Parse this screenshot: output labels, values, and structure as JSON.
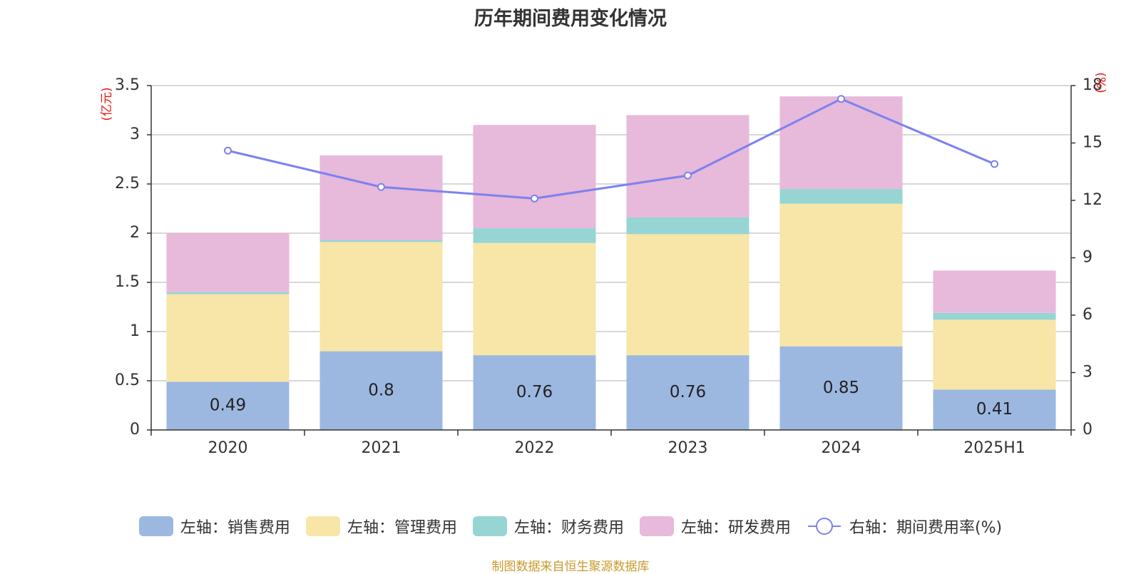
{
  "chart_data": {
    "type": "bar",
    "stacked": true,
    "title": "历年期间费用变化情况",
    "categories": [
      "2020",
      "2021",
      "2022",
      "2023",
      "2024",
      "2025H1"
    ],
    "y_left": {
      "unit": "(亿元)",
      "ylim": [
        0,
        3.5
      ],
      "ticks": [
        "0",
        "0.5",
        "1",
        "1.5",
        "2",
        "2.5",
        "3",
        "3.5"
      ]
    },
    "y_right": {
      "unit": "(%)",
      "ylim": [
        0,
        18
      ],
      "ticks": [
        "0",
        "3",
        "6",
        "9",
        "12",
        "15",
        "18"
      ]
    },
    "grid": true,
    "legend_position": "bottom",
    "series": [
      {
        "name": "左轴：销售费用",
        "type": "bar",
        "color": "#9db8e0",
        "values": [
          0.49,
          0.8,
          0.76,
          0.76,
          0.85,
          0.41
        ],
        "labels": [
          "0.49",
          "0.8",
          "0.76",
          "0.76",
          "0.85",
          "0.41"
        ]
      },
      {
        "name": "左轴：管理费用",
        "type": "bar",
        "color": "#f7e6a7",
        "values": [
          0.89,
          1.11,
          1.14,
          1.23,
          1.45,
          0.71
        ]
      },
      {
        "name": "左轴：财务费用",
        "type": "bar",
        "color": "#96d5d3",
        "values": [
          0.02,
          0.02,
          0.15,
          0.17,
          0.15,
          0.07
        ]
      },
      {
        "name": "左轴：研发费用",
        "type": "bar",
        "color": "#e7b9da",
        "values": [
          0.6,
          0.86,
          1.05,
          1.04,
          0.94,
          0.43
        ]
      },
      {
        "name": "右轴：期间费用率(%)",
        "type": "line",
        "axis": "right",
        "color": "#7b82ee",
        "values": [
          14.6,
          12.7,
          12.1,
          13.3,
          17.3,
          13.9
        ]
      }
    ]
  },
  "source": {
    "text": "制图数据来自恒生聚源数据库",
    "color": "#c89a2e"
  },
  "colors": {
    "axis_unit": "#e8150f",
    "grid": "#cccccc",
    "text": "#333333"
  }
}
